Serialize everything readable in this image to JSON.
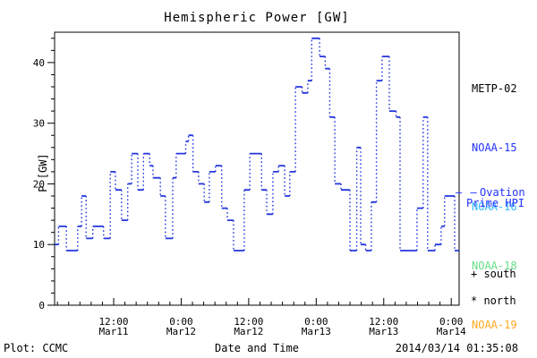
{
  "title": "Hemispheric Power [GW]",
  "y_axis_label": "P [GW]",
  "footer": {
    "left": "Plot: CCMC",
    "center": "Date and Time",
    "right": "2014/03/14 01:35:08"
  },
  "legend": {
    "satellites": [
      {
        "label": "METP-02",
        "color": "#000000"
      },
      {
        "label": "NOAA-15",
        "color": "#2233ff"
      },
      {
        "label": "NOAA-16",
        "color": "#33bbff"
      },
      {
        "label": "NOAA-18",
        "color": "#66dd88"
      },
      {
        "label": "NOAA-19",
        "color": "#ffaa22"
      }
    ],
    "model_marker": "– –",
    "model_label_line1": "Ovation",
    "model_label_line2": "Prime HPI",
    "model_color": "#2233ff",
    "hemisphere_south": "+ south",
    "hemisphere_north": "* north"
  },
  "chart_data": {
    "type": "line",
    "subtype": "stairstep",
    "title": "Hemispheric Power [GW]",
    "xlabel": "Date and Time",
    "ylabel": "P [GW]",
    "ylim": [
      0,
      45
    ],
    "y_major_ticks": [
      0,
      10,
      20,
      30,
      40
    ],
    "y_minor_step": 2,
    "x_hours_range": [
      1.5,
      73.4
    ],
    "x_epoch": "hours since 2014-03-11 00:00 UT",
    "x_minor_step_hours": 2,
    "x_major_ticks": [
      {
        "hour": 12,
        "time": "12:00",
        "date": "Mar11"
      },
      {
        "hour": 24,
        "time": "0:00",
        "date": "Mar12"
      },
      {
        "hour": 36,
        "time": "12:00",
        "date": "Mar12"
      },
      {
        "hour": 48,
        "time": "0:00",
        "date": "Mar13"
      },
      {
        "hour": 60,
        "time": "12:00",
        "date": "Mar13"
      },
      {
        "hour": 72,
        "time": "0:00",
        "date": "Mar14"
      }
    ],
    "grid": false,
    "legend_position": "right",
    "series": [
      {
        "name": "Ovation Prime HPI",
        "color": "#2236dd",
        "style": "step",
        "points_hour_value": [
          [
            1.5,
            10
          ],
          [
            2.2,
            13
          ],
          [
            3.6,
            9
          ],
          [
            5.6,
            13
          ],
          [
            6.3,
            18
          ],
          [
            7.1,
            11
          ],
          [
            8.3,
            13
          ],
          [
            10.2,
            11
          ],
          [
            11.4,
            22
          ],
          [
            12.3,
            19
          ],
          [
            13.4,
            14
          ],
          [
            14.5,
            20
          ],
          [
            15.2,
            25
          ],
          [
            16.3,
            19
          ],
          [
            17.3,
            25
          ],
          [
            18.4,
            23
          ],
          [
            19.0,
            21
          ],
          [
            20.3,
            18
          ],
          [
            21.2,
            11
          ],
          [
            22.5,
            21
          ],
          [
            23.1,
            25
          ],
          [
            24.8,
            27
          ],
          [
            25.3,
            28
          ],
          [
            26.1,
            22
          ],
          [
            27.1,
            20
          ],
          [
            28.1,
            17
          ],
          [
            29.0,
            22
          ],
          [
            30.1,
            23
          ],
          [
            31.2,
            16
          ],
          [
            32.2,
            14
          ],
          [
            33.3,
            9
          ],
          [
            35.2,
            19
          ],
          [
            36.2,
            25
          ],
          [
            38.3,
            19
          ],
          [
            39.2,
            15
          ],
          [
            40.3,
            22
          ],
          [
            41.3,
            23
          ],
          [
            42.4,
            18
          ],
          [
            43.3,
            22
          ],
          [
            44.3,
            36
          ],
          [
            45.5,
            35
          ],
          [
            46.5,
            37
          ],
          [
            47.2,
            44
          ],
          [
            48.6,
            41
          ],
          [
            49.6,
            39
          ],
          [
            50.4,
            31
          ],
          [
            51.3,
            20
          ],
          [
            52.4,
            19
          ],
          [
            54.0,
            9
          ],
          [
            55.2,
            26
          ],
          [
            55.9,
            10
          ],
          [
            56.8,
            9
          ],
          [
            57.8,
            17
          ],
          [
            58.7,
            37
          ],
          [
            59.7,
            41
          ],
          [
            61.0,
            32
          ],
          [
            62.2,
            31
          ],
          [
            62.9,
            9
          ],
          [
            65.9,
            16
          ],
          [
            67.0,
            31
          ],
          [
            67.8,
            9
          ],
          [
            69.1,
            10
          ],
          [
            70.2,
            13
          ],
          [
            70.8,
            18
          ],
          [
            72.6,
            9
          ]
        ]
      }
    ]
  }
}
